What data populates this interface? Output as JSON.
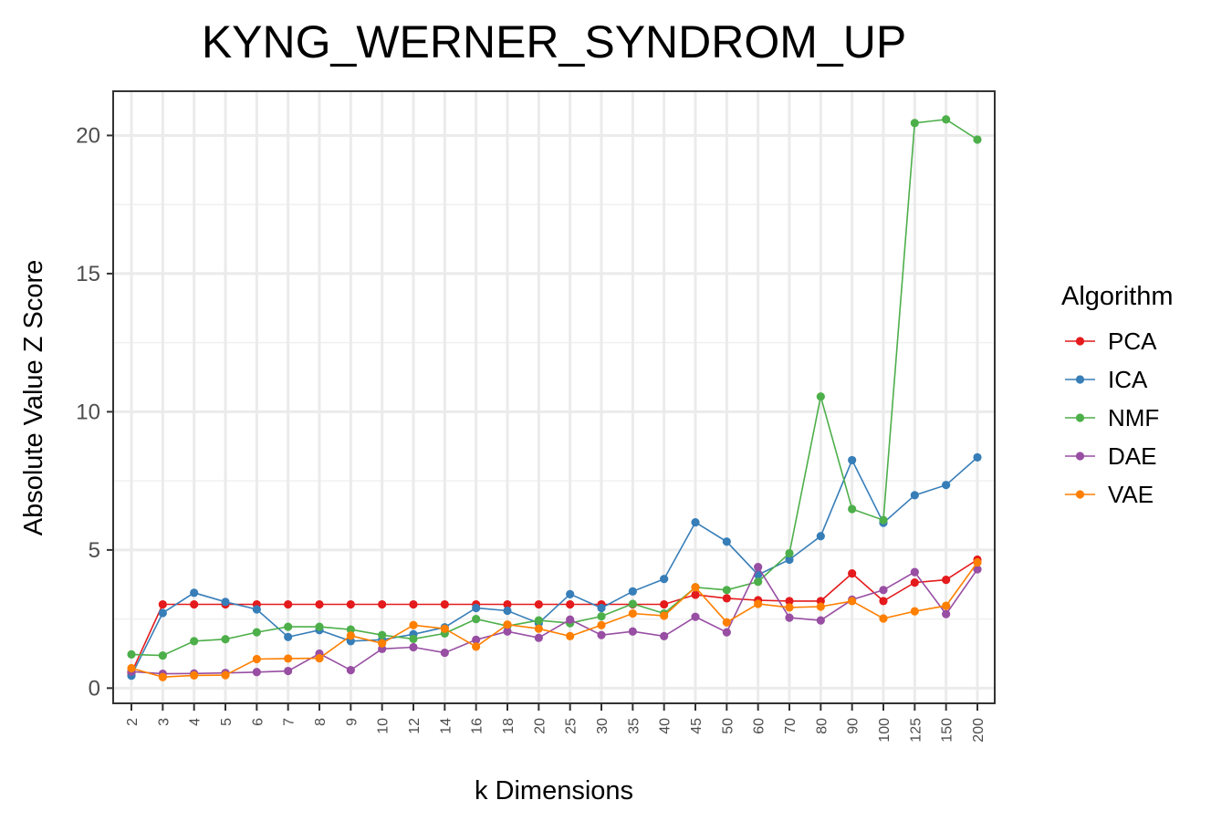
{
  "chart_data": {
    "type": "line",
    "title": "KYNG_WERNER_SYNDROM_UP",
    "xlabel": "k Dimensions",
    "ylabel": "Absolute Value Z Score",
    "categories": [
      "2",
      "3",
      "4",
      "5",
      "6",
      "7",
      "8",
      "9",
      "10",
      "12",
      "14",
      "16",
      "18",
      "20",
      "25",
      "30",
      "35",
      "40",
      "45",
      "50",
      "60",
      "70",
      "80",
      "90",
      "100",
      "125",
      "150",
      "200"
    ],
    "ylim": [
      -0.55,
      21.6
    ],
    "yticks": [
      0,
      5,
      10,
      15,
      20
    ],
    "grid": true,
    "legend": {
      "title": "Algorithm",
      "placement": "right"
    },
    "series": [
      {
        "name": "PCA",
        "color": "#e41a1c",
        "values": [
          0.55,
          3.03,
          3.03,
          3.03,
          3.03,
          3.03,
          3.03,
          3.03,
          3.03,
          3.03,
          3.03,
          3.03,
          3.03,
          3.03,
          3.03,
          3.03,
          3.03,
          3.03,
          3.38,
          3.25,
          3.18,
          3.15,
          3.15,
          4.15,
          3.15,
          3.82,
          3.92,
          4.65
        ]
      },
      {
        "name": "ICA",
        "color": "#377eb8",
        "values": [
          0.45,
          2.72,
          3.45,
          3.12,
          2.85,
          1.85,
          2.1,
          1.7,
          1.75,
          1.95,
          2.2,
          2.9,
          2.8,
          2.35,
          3.4,
          2.9,
          3.5,
          3.95,
          6.0,
          5.3,
          4.1,
          4.65,
          5.5,
          8.25,
          5.98,
          6.98,
          7.35,
          8.35
        ]
      },
      {
        "name": "NMF",
        "color": "#4daf4a",
        "values": [
          1.22,
          1.18,
          1.7,
          1.77,
          2.02,
          2.22,
          2.22,
          2.12,
          1.92,
          1.78,
          1.98,
          2.5,
          2.25,
          2.45,
          2.35,
          2.6,
          3.05,
          2.7,
          3.65,
          3.55,
          3.85,
          4.88,
          10.55,
          6.48,
          6.08,
          20.45,
          20.58,
          19.85
        ]
      },
      {
        "name": "DAE",
        "color": "#984ea3",
        "values": [
          0.6,
          0.52,
          0.53,
          0.55,
          0.58,
          0.62,
          1.25,
          0.65,
          1.42,
          1.48,
          1.28,
          1.75,
          2.05,
          1.82,
          2.48,
          1.92,
          2.05,
          1.88,
          2.58,
          2.02,
          4.38,
          2.55,
          2.45,
          3.2,
          3.55,
          4.2,
          2.68,
          4.3
        ]
      },
      {
        "name": "VAE",
        "color": "#ff7f00",
        "values": [
          0.72,
          0.4,
          0.46,
          0.47,
          1.05,
          1.07,
          1.08,
          1.9,
          1.62,
          2.28,
          2.15,
          1.5,
          2.3,
          2.15,
          1.88,
          2.28,
          2.7,
          2.62,
          3.65,
          2.38,
          3.05,
          2.92,
          2.95,
          3.15,
          2.52,
          2.78,
          2.98,
          4.55
        ]
      }
    ]
  }
}
